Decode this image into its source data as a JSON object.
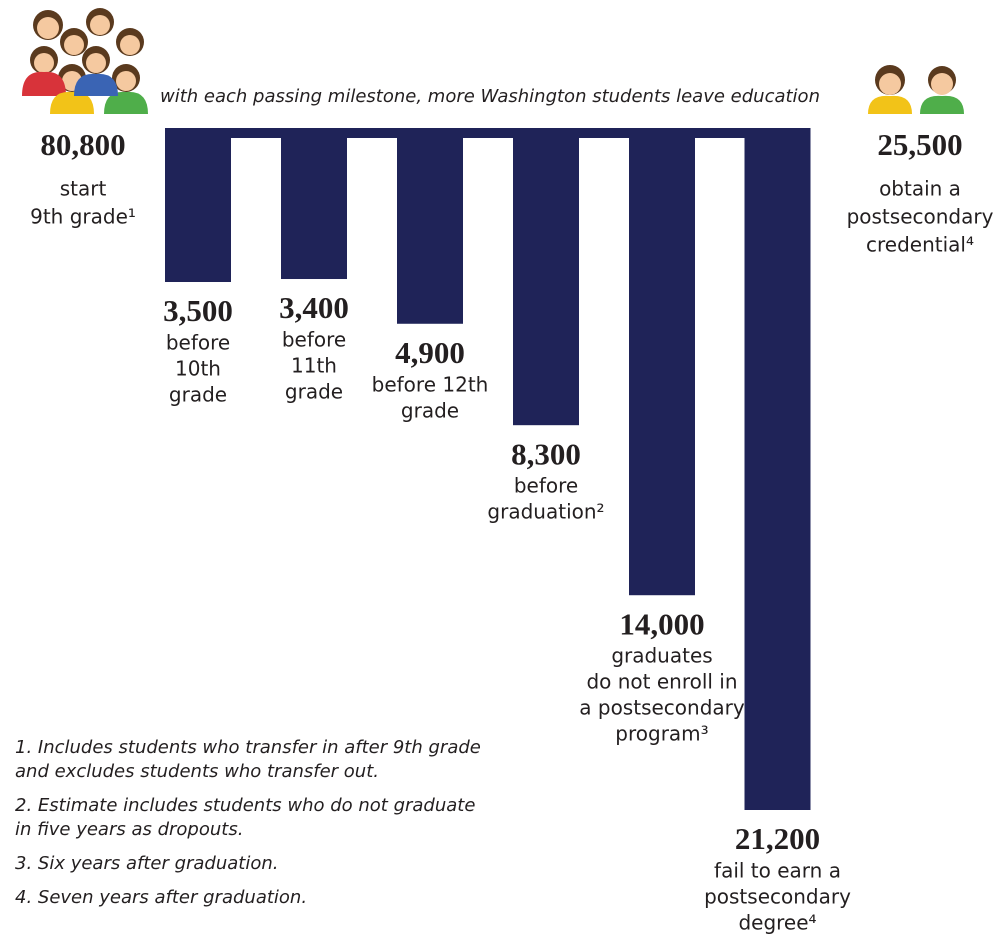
{
  "chart_data": {
    "type": "bar",
    "subtitle": "with each passing milestone, more Washington students leave education",
    "color": "#1f2358",
    "start": {
      "value": 80800,
      "label": "80,800",
      "lines": [
        "start",
        "9th grade¹"
      ]
    },
    "end": {
      "value": 25500,
      "label": "25,500",
      "lines": [
        "obtain a",
        "postsecondary",
        "credential⁴"
      ]
    },
    "values": [
      3500,
      3400,
      4900,
      8300,
      14000,
      21200
    ],
    "value_labels": [
      "3,500",
      "3,400",
      "4,900",
      "8,300",
      "14,000",
      "21,200"
    ],
    "categories": [
      [
        "before",
        "10th",
        "grade"
      ],
      [
        "before",
        "11th",
        "grade"
      ],
      [
        "before 12th",
        "grade"
      ],
      [
        "before",
        "graduation²"
      ],
      [
        "graduates",
        "do not enroll in",
        "a postsecondary",
        "program³"
      ],
      [
        "fail to earn a",
        "postsecondary",
        "degree⁴"
      ]
    ],
    "footnotes": [
      [
        "1. Includes students who transfer in after 9th grade",
        "and excludes students who transfer out."
      ],
      [
        "2. Estimate includes students who do not graduate",
        "in five years as dropouts."
      ],
      [
        "3. Six years after graduation."
      ],
      [
        "4. Seven years after graduation."
      ]
    ]
  }
}
